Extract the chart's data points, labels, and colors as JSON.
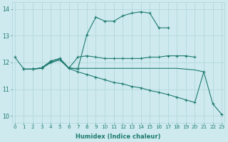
{
  "bg_color": "#ceeaee",
  "grid_color": "#aed4d8",
  "line_color": "#1e7b70",
  "xlabel": "Humidex (Indice chaleur)",
  "xlim": [
    -0.3,
    23.3
  ],
  "ylim": [
    9.75,
    14.25
  ],
  "yticks": [
    10,
    11,
    12,
    13,
    14
  ],
  "xticks": [
    0,
    1,
    2,
    3,
    4,
    5,
    6,
    7,
    8,
    9,
    10,
    11,
    12,
    13,
    14,
    15,
    16,
    17,
    18,
    19,
    20,
    21,
    22,
    23
  ],
  "series": [
    {
      "x": [
        0,
        1,
        2,
        3,
        4,
        5,
        6,
        7,
        8,
        9,
        10,
        11,
        12,
        13,
        14,
        15,
        16,
        17
      ],
      "y": [
        12.2,
        11.75,
        11.75,
        11.8,
        12.05,
        12.15,
        11.8,
        11.75,
        13.05,
        13.7,
        13.55,
        13.55,
        13.75,
        13.85,
        13.9,
        13.85,
        13.3,
        13.3
      ],
      "markers": true
    },
    {
      "x": [
        1,
        2,
        3,
        4,
        5,
        6,
        7,
        8,
        9,
        10,
        11,
        12,
        13,
        14,
        15,
        16,
        17,
        18,
        19,
        20
      ],
      "y": [
        11.75,
        11.75,
        11.8,
        12.05,
        12.15,
        11.78,
        12.2,
        12.25,
        12.2,
        12.15,
        12.15,
        12.15,
        12.15,
        12.15,
        12.2,
        12.2,
        12.25,
        12.25,
        12.25,
        12.2
      ],
      "markers": true
    },
    {
      "x": [
        1,
        2,
        3,
        4,
        5,
        6,
        7,
        8,
        9,
        10,
        11,
        12,
        13,
        14,
        15,
        16,
        17,
        18,
        19,
        20,
        21
      ],
      "y": [
        11.75,
        11.75,
        11.8,
        12.0,
        12.1,
        11.78,
        11.78,
        11.78,
        11.78,
        11.78,
        11.78,
        11.78,
        11.78,
        11.78,
        11.78,
        11.78,
        11.78,
        11.78,
        11.75,
        11.72,
        11.65
      ],
      "markers": false
    },
    {
      "x": [
        1,
        2,
        3,
        4,
        5,
        6,
        7,
        8,
        9,
        10,
        11,
        12,
        13,
        14,
        15,
        16,
        17,
        18,
        19,
        20,
        21,
        22,
        23
      ],
      "y": [
        11.75,
        11.75,
        11.78,
        12.0,
        12.1,
        11.78,
        11.65,
        11.55,
        11.45,
        11.35,
        11.25,
        11.2,
        11.1,
        11.05,
        10.95,
        10.88,
        10.8,
        10.7,
        10.6,
        10.5,
        11.65,
        10.45,
        10.05
      ],
      "markers": true
    }
  ]
}
